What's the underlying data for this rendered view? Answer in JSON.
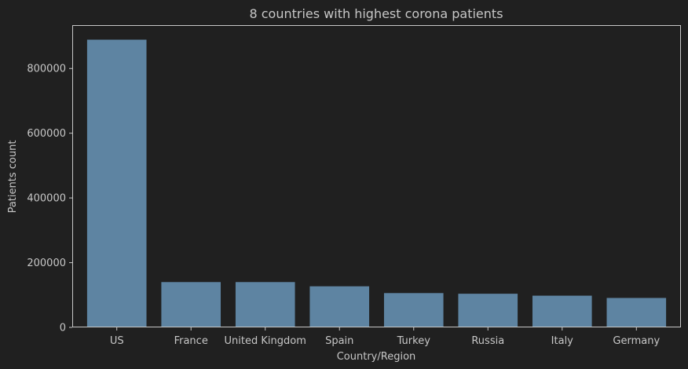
{
  "chart_data": {
    "type": "bar",
    "title": "8 countries with highest corona patients",
    "xlabel": "Country/Region",
    "ylabel": "Patients count",
    "categories": [
      "US",
      "France",
      "United Kingdom",
      "Spain",
      "Turkey",
      "Russia",
      "Italy",
      "Germany"
    ],
    "values": [
      889000,
      140000,
      140000,
      127000,
      106000,
      104000,
      98000,
      91000
    ],
    "ylim": [
      0,
      934000
    ],
    "yticks": [
      0,
      200000,
      400000,
      600000,
      800000
    ],
    "ytick_labels": [
      "0",
      "200000",
      "400000",
      "600000",
      "800000"
    ],
    "grid": false,
    "legend": false,
    "colors": {
      "background": "#202020",
      "bar": "#5e84a2",
      "axes": "#c7c7c7",
      "text": "#c7c7c7"
    }
  }
}
